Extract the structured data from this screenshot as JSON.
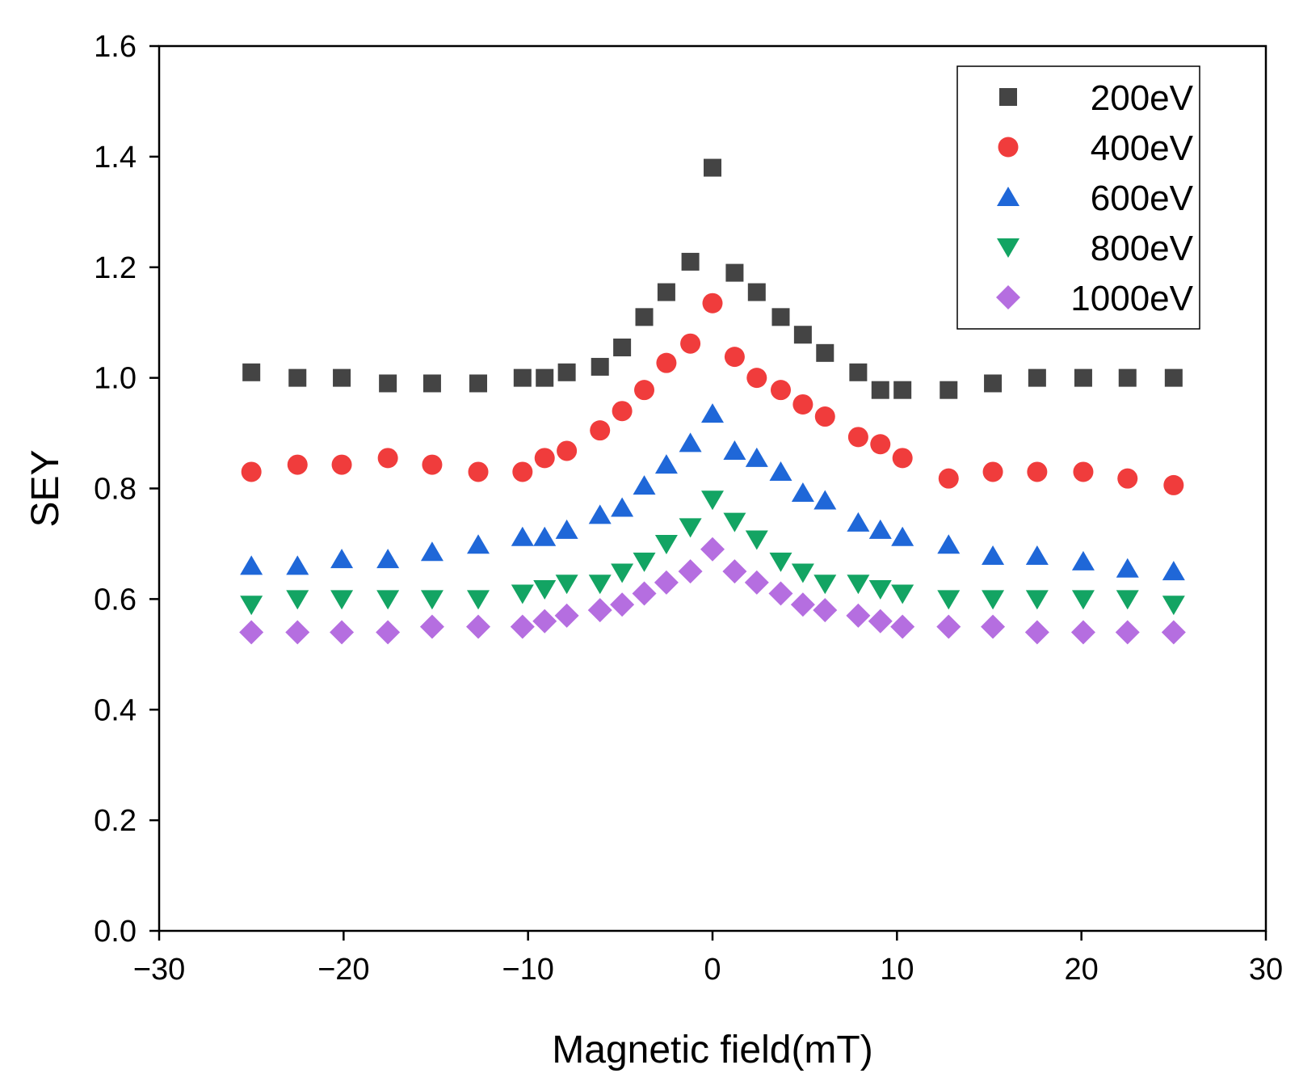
{
  "chart_data": {
    "type": "scatter",
    "title": "",
    "xlabel": "Magnetic field(mT)",
    "ylabel": "SEY",
    "xlim": [
      -30,
      30
    ],
    "ylim": [
      0.0,
      1.6
    ],
    "xticks": [
      -30,
      -20,
      -10,
      0,
      10,
      20,
      30
    ],
    "xtick_labels": [
      "−30",
      "−20",
      "−10",
      "0",
      "10",
      "20",
      "30"
    ],
    "yticks": [
      0.0,
      0.2,
      0.4,
      0.6,
      0.8,
      1.0,
      1.2,
      1.4,
      1.6
    ],
    "ytick_labels": [
      "0.0",
      "0.2",
      "0.4",
      "0.6",
      "0.8",
      "1.0",
      "1.2",
      "1.4",
      "1.6"
    ],
    "grid": false,
    "legend_position": "top-right",
    "x": [
      -25,
      -22.5,
      -20.1,
      -17.6,
      -15.2,
      -12.7,
      -10.3,
      -9.1,
      -7.9,
      -6.1,
      -4.9,
      -3.7,
      -2.5,
      -1.2,
      0,
      1.2,
      2.4,
      3.7,
      4.9,
      6.1,
      7.9,
      9.1,
      10.3,
      12.8,
      15.2,
      17.6,
      20.1,
      22.5,
      25
    ],
    "series": [
      {
        "name": "200eV",
        "marker": "square",
        "color": "#444444",
        "values": [
          1.01,
          1.0,
          1.0,
          0.99,
          0.99,
          0.99,
          1.0,
          1.0,
          1.01,
          1.02,
          1.055,
          1.11,
          1.155,
          1.21,
          1.38,
          1.19,
          1.155,
          1.11,
          1.078,
          1.045,
          1.01,
          0.978,
          0.978,
          0.978,
          0.99,
          1.0,
          1.0,
          1.0,
          1.0
        ]
      },
      {
        "name": "400eV",
        "marker": "circle",
        "color": "#f03c3c",
        "values": [
          0.83,
          0.843,
          0.843,
          0.855,
          0.843,
          0.83,
          0.83,
          0.855,
          0.868,
          0.905,
          0.94,
          0.978,
          1.027,
          1.062,
          1.135,
          1.038,
          1.0,
          0.978,
          0.952,
          0.93,
          0.893,
          0.88,
          0.855,
          0.818,
          0.83,
          0.83,
          0.83,
          0.818,
          0.806
        ]
      },
      {
        "name": "600eV",
        "marker": "triangle-up",
        "color": "#1f67d8",
        "values": [
          0.66,
          0.66,
          0.672,
          0.672,
          0.685,
          0.698,
          0.712,
          0.712,
          0.725,
          0.752,
          0.765,
          0.805,
          0.843,
          0.882,
          0.935,
          0.868,
          0.855,
          0.83,
          0.792,
          0.778,
          0.738,
          0.725,
          0.712,
          0.698,
          0.678,
          0.678,
          0.668,
          0.655,
          0.65
        ]
      },
      {
        "name": "800eV",
        "marker": "triangle-down",
        "color": "#13a463",
        "values": [
          0.59,
          0.6,
          0.6,
          0.6,
          0.6,
          0.6,
          0.61,
          0.618,
          0.628,
          0.628,
          0.648,
          0.668,
          0.7,
          0.73,
          0.78,
          0.74,
          0.708,
          0.668,
          0.648,
          0.628,
          0.628,
          0.618,
          0.61,
          0.6,
          0.6,
          0.6,
          0.6,
          0.6,
          0.59
        ]
      },
      {
        "name": "1000eV",
        "marker": "diamond",
        "color": "#b56ee0",
        "values": [
          0.54,
          0.54,
          0.54,
          0.54,
          0.55,
          0.55,
          0.55,
          0.56,
          0.57,
          0.58,
          0.59,
          0.61,
          0.63,
          0.65,
          0.69,
          0.65,
          0.63,
          0.61,
          0.59,
          0.58,
          0.57,
          0.56,
          0.55,
          0.55,
          0.55,
          0.54,
          0.54,
          0.54,
          0.54
        ]
      }
    ]
  }
}
